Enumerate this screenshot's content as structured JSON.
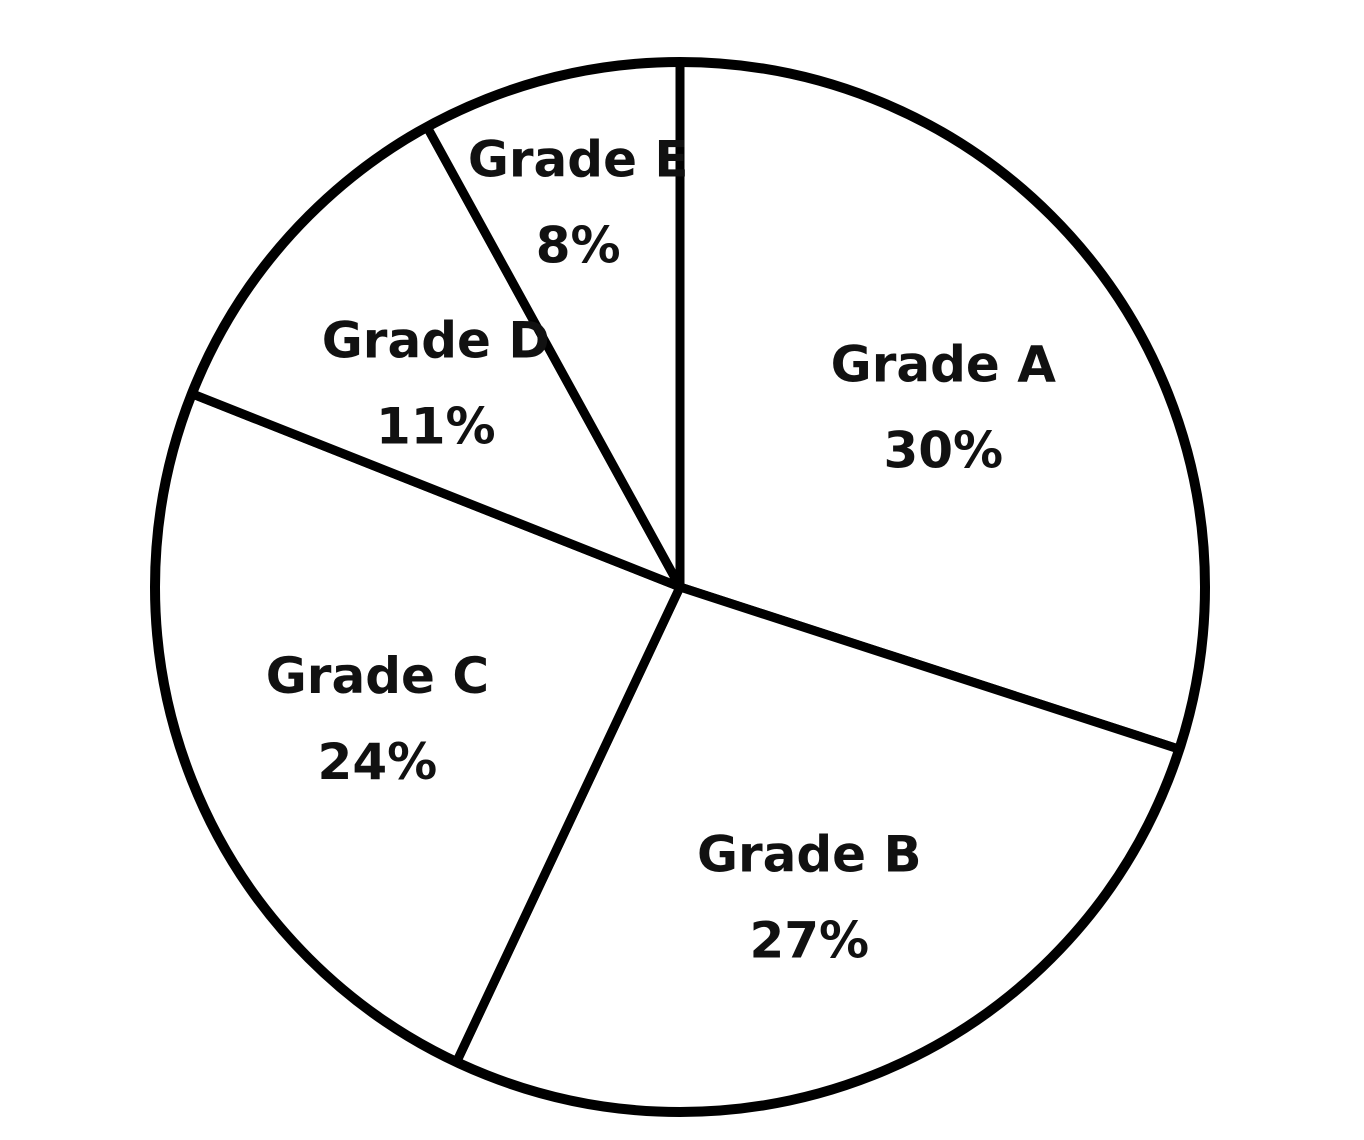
{
  "chart_data": {
    "type": "pie",
    "title": "",
    "start_angle_deg": 0,
    "direction": "clockwise",
    "slices": [
      {
        "label": "Grade A",
        "value": 30,
        "value_label": "30%"
      },
      {
        "label": "Grade B",
        "value": 27,
        "value_label": "27%"
      },
      {
        "label": "Grade C",
        "value": 24,
        "value_label": "24%"
      },
      {
        "label": "Grade D",
        "value": 11,
        "value_label": "11%"
      },
      {
        "label": "Grade E",
        "value": 8,
        "value_label": "8%"
      }
    ],
    "colors": {
      "fill": "#ffffff",
      "stroke": "#000000",
      "text": "#111111"
    }
  }
}
